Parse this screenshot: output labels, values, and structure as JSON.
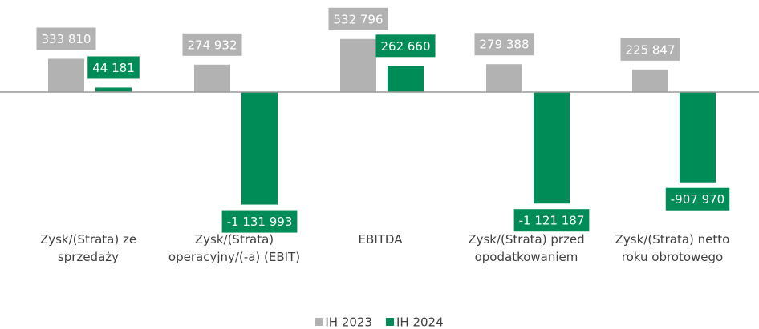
{
  "chart_data": {
    "type": "bar",
    "categories": [
      "Zysk/(Strata) ze sprzedaży",
      "Zysk/(Strata) operacyjny/(-a) (EBIT)",
      "EBITDA",
      "Zysk/(Strata) przed opodatkowaniem",
      "Zysk/(Strata) netto roku obrotowego"
    ],
    "series": [
      {
        "name": "IH 2023",
        "color": "#b2b2b2",
        "values": [
          333810,
          274932,
          532796,
          279388,
          225847
        ],
        "value_labels": [
          "333 810",
          "274 932",
          "532 796",
          "279 388",
          "225 847"
        ]
      },
      {
        "name": "IH 2024",
        "color": "#008c57",
        "values": [
          44181,
          -1131993,
          262660,
          -1121187,
          -907970
        ],
        "value_labels": [
          "44 181",
          "-1 131 993",
          "262 660",
          "-1 121 187",
          "-907 970"
        ]
      }
    ],
    "ylim": [
      -1200000,
      700000
    ],
    "legend": "bottom"
  }
}
